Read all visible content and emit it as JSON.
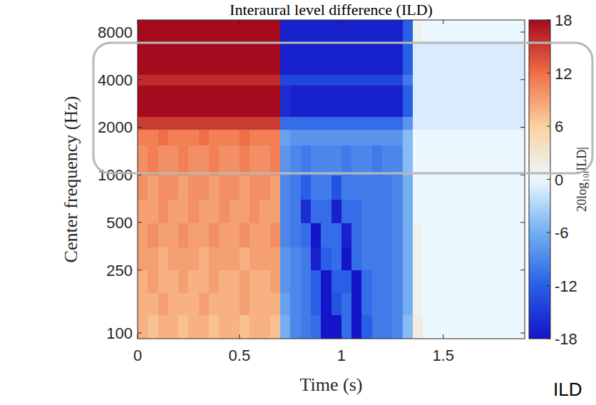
{
  "chart_data": {
    "type": "heatmap",
    "title": "Interaural level difference (ILD)",
    "x_label": "Time (s)",
    "y_label": "Center frequency (Hz)",
    "log": "y",
    "xlim": [
      0,
      1.9
    ],
    "ylim": [
      92,
      9540
    ],
    "xticks": [
      0,
      0.5,
      1,
      1.5
    ],
    "yticks": [
      100,
      250,
      500,
      1000,
      2000,
      4000,
      8000
    ],
    "x_edges": [
      0,
      0.05,
      0.1,
      0.15,
      0.2,
      0.25,
      0.3,
      0.35,
      0.4,
      0.45,
      0.5,
      0.55,
      0.6,
      0.65,
      0.7,
      0.75,
      0.8,
      0.85,
      0.9,
      0.95,
      1,
      1.05,
      1.1,
      1.15,
      1.2,
      1.25,
      1.3,
      1.35,
      1.4,
      1.45,
      1.5,
      1.55,
      1.6,
      1.65,
      1.7,
      1.75,
      1.8,
      1.85,
      1.9
    ],
    "y_edges": [
      92,
      130,
      180,
      250,
      350,
      500,
      700,
      1000,
      1550,
      1950,
      2350,
      3700,
      4300,
      7000,
      9540
    ],
    "cells": [
      [
        8,
        7,
        8,
        8,
        7,
        8,
        8,
        7,
        8,
        8,
        7,
        8,
        8,
        7,
        -6,
        -9,
        -10,
        -11,
        -18,
        -18,
        -11,
        -18,
        -12,
        -10,
        -10,
        -9,
        -5,
        2,
        0,
        0,
        0,
        0,
        0,
        0,
        0,
        0,
        0,
        0
      ],
      [
        8,
        8,
        9,
        8,
        8,
        8,
        9,
        8,
        8,
        8,
        9,
        8,
        8,
        8,
        -7,
        -9,
        -10,
        -12,
        -18,
        -13,
        -11,
        -18,
        -11,
        -10,
        -10,
        -9,
        -6,
        1,
        0,
        0,
        0,
        0,
        0,
        0,
        0,
        0,
        0,
        0
      ],
      [
        8,
        9,
        8,
        8,
        9,
        8,
        8,
        9,
        8,
        8,
        9,
        8,
        8,
        9,
        -8,
        -9,
        -10,
        -12,
        -18,
        -12,
        -12,
        -18,
        -11,
        -10,
        -10,
        -9,
        -6,
        1,
        0,
        0,
        0,
        0,
        0,
        0,
        0,
        0,
        0,
        0
      ],
      [
        9,
        9,
        8,
        9,
        9,
        9,
        8,
        9,
        9,
        9,
        8,
        9,
        9,
        9,
        -8,
        -9,
        -10,
        -17,
        -12,
        -11,
        -18,
        -11,
        -10,
        -10,
        -10,
        -9,
        -6,
        1,
        0,
        0,
        0,
        0,
        0,
        0,
        0,
        0,
        0,
        0
      ],
      [
        9,
        10,
        9,
        9,
        10,
        9,
        9,
        10,
        9,
        9,
        10,
        9,
        9,
        10,
        -9,
        -10,
        -11,
        -18,
        -11,
        -11,
        -17,
        -11,
        -10,
        -10,
        -10,
        -9,
        -6,
        1,
        0,
        0,
        0,
        0,
        0,
        0,
        0,
        0,
        0,
        0
      ],
      [
        9,
        9,
        10,
        9,
        9,
        10,
        9,
        9,
        10,
        9,
        9,
        10,
        9,
        9,
        -9,
        -10,
        -16,
        -11,
        -11,
        -17,
        -11,
        -11,
        -10,
        -10,
        -10,
        -9,
        -6,
        0,
        0,
        0,
        0,
        0,
        0,
        0,
        0,
        0,
        0,
        0
      ],
      [
        10,
        9,
        10,
        10,
        9,
        10,
        10,
        9,
        10,
        10,
        9,
        10,
        10,
        9,
        -9,
        -10,
        -12,
        -10,
        -10,
        -13,
        -10,
        -10,
        -10,
        -10,
        -10,
        -9,
        -6,
        0,
        0,
        0,
        0,
        0,
        0,
        0,
        0,
        0,
        0,
        0
      ],
      [
        10,
        11,
        10,
        10,
        11,
        10,
        10,
        11,
        10,
        10,
        11,
        10,
        10,
        11,
        -8,
        -9,
        -10,
        -9,
        -9,
        -9,
        -10,
        -9,
        -9,
        -10,
        -9,
        -9,
        -5,
        0,
        0,
        0,
        0,
        0,
        0,
        0,
        0,
        0,
        0,
        0
      ],
      [
        11,
        11,
        12,
        11,
        11,
        11,
        12,
        11,
        11,
        11,
        12,
        11,
        11,
        11,
        -7,
        -8,
        -8,
        -8,
        -8,
        -8,
        -8,
        -8,
        -8,
        -8,
        -8,
        -8,
        -5,
        0,
        0,
        0,
        0,
        0,
        0,
        0,
        0,
        0,
        0,
        0
      ],
      [
        15,
        15,
        15,
        15,
        15,
        15,
        15,
        15,
        15,
        15,
        15,
        15,
        15,
        15,
        -11,
        -11,
        -11,
        -11,
        -11,
        -11,
        -11,
        -11,
        -11,
        -11,
        -11,
        -11,
        -8,
        -1,
        -1,
        -1,
        -1,
        -1,
        -1,
        -1,
        -1,
        -1,
        -1,
        -1
      ],
      [
        18,
        18,
        18,
        18,
        18,
        18,
        18,
        18,
        18,
        18,
        18,
        18,
        18,
        18,
        -16,
        -17,
        -17,
        -17,
        -17,
        -17,
        -17,
        -17,
        -17,
        -17,
        -17,
        -17,
        -12,
        -1,
        -1,
        -1,
        -1,
        -1,
        -1,
        -1,
        -1,
        -1,
        -1,
        -1
      ],
      [
        16,
        16,
        16,
        16,
        16,
        16,
        16,
        16,
        16,
        16,
        16,
        16,
        16,
        16,
        -14,
        -14,
        -14,
        -14,
        -14,
        -14,
        -14,
        -14,
        -14,
        -14,
        -14,
        -14,
        -10,
        -1,
        -1,
        -1,
        -1,
        -1,
        -1,
        -1,
        -1,
        -1,
        -1,
        -1
      ],
      [
        18,
        18,
        18,
        18,
        18,
        18,
        18,
        18,
        18,
        18,
        18,
        18,
        18,
        18,
        -17,
        -17,
        -17,
        -17,
        -17,
        -17,
        -17,
        -17,
        -17,
        -17,
        -17,
        -17,
        -12,
        -1,
        -1,
        -1,
        -1,
        -1,
        -1,
        -1,
        -1,
        -1,
        -1,
        -1
      ],
      [
        18,
        18,
        18,
        18,
        18,
        18,
        18,
        18,
        18,
        18,
        18,
        18,
        18,
        18,
        -17,
        -17,
        -17,
        -17,
        -17,
        -17,
        -17,
        -17,
        -17,
        -17,
        -17,
        -17,
        -12,
        1,
        0,
        0,
        0,
        0,
        0,
        0,
        0,
        0,
        0,
        0
      ]
    ],
    "colorbar": {
      "label": "20log₁₀|ILD|",
      "range": [
        -18,
        18
      ],
      "ticks": [
        -18,
        -12,
        -6,
        0,
        6,
        12,
        18
      ]
    },
    "annotations": [
      "ILD"
    ]
  }
}
